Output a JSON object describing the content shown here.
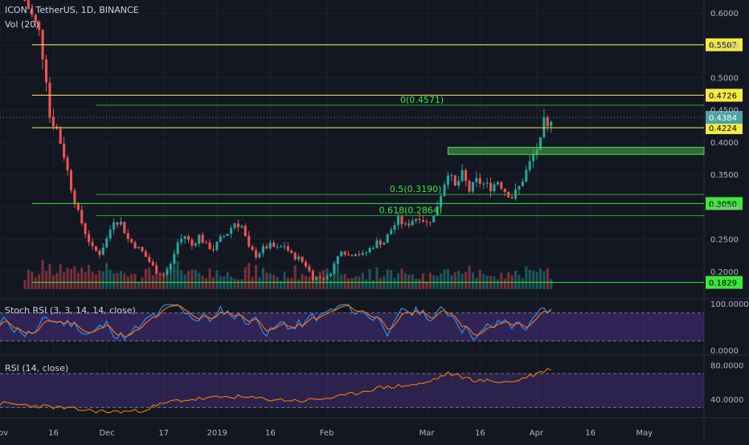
{
  "header": {
    "symbol": "ICON / TetherUS, 1D, BINANCE",
    "volume": "Vol (20)"
  },
  "chart_data": [
    {
      "type": "candlestick",
      "title": "ICON / TetherUS, 1D, BINANCE",
      "ylim": [
        0.16,
        0.62
      ],
      "y_ticks": [
        "0.6000",
        "0.5500",
        "0.5000",
        "0.4500",
        "0.4000",
        "0.3500",
        "0.3000",
        "0.2500",
        "0.2000"
      ],
      "x_ticks": [
        "Nov",
        "16",
        "Dec",
        "17",
        "2019",
        "16",
        "Feb",
        "Mar",
        "16",
        "Apr",
        "16",
        "May"
      ],
      "x_range": [
        "2018-11-01",
        "2019-05-18"
      ],
      "last_price": "0.4384",
      "horizontal_levels": [
        {
          "label": "0.5507",
          "value": 0.5507,
          "color": "#f5ea47"
        },
        {
          "label": "0.4726",
          "value": 0.4726,
          "color": "#f5ea47"
        },
        {
          "label": "0.4224",
          "value": 0.4224,
          "color": "#f5ea47"
        },
        {
          "label": "0.3050",
          "value": 0.305,
          "color": "#3ee63e"
        },
        {
          "label": "0.1829",
          "value": 0.1829,
          "color": "#3ee63e"
        }
      ],
      "fib_levels": [
        {
          "label": "0(0.4571)",
          "value": 0.4571
        },
        {
          "label": "0.5(0.3190)",
          "value": 0.319
        },
        {
          "label": "0.618(0.2864)",
          "value": 0.2864
        }
      ],
      "zone": {
        "from": 0.381,
        "to": 0.392
      },
      "colors": {
        "up": "#26a69a",
        "down": "#ef5350",
        "level_yellow": "#f5ea47",
        "level_green": "#3ee63e",
        "last_price": "#4aa3a3"
      },
      "close_path": [
        [
          "2018-11-08",
          0.62
        ],
        [
          "2018-11-12",
          0.57
        ],
        [
          "2018-11-14",
          0.5
        ],
        [
          "2018-11-15",
          0.44
        ],
        [
          "2018-11-17",
          0.42
        ],
        [
          "2018-11-19",
          0.38
        ],
        [
          "2018-11-21",
          0.33
        ],
        [
          "2018-11-23",
          0.29
        ],
        [
          "2018-11-25",
          0.26
        ],
        [
          "2018-11-27",
          0.235
        ],
        [
          "2018-11-29",
          0.228
        ],
        [
          "2018-12-01",
          0.25
        ],
        [
          "2018-12-03",
          0.28
        ],
        [
          "2018-12-05",
          0.275
        ],
        [
          "2018-12-07",
          0.25
        ],
        [
          "2018-12-09",
          0.24
        ],
        [
          "2018-12-11",
          0.23
        ],
        [
          "2018-12-13",
          0.215
        ],
        [
          "2018-12-15",
          0.2
        ],
        [
          "2018-12-17",
          0.195
        ],
        [
          "2018-12-19",
          0.21
        ],
        [
          "2018-12-21",
          0.245
        ],
        [
          "2018-12-23",
          0.255
        ],
        [
          "2018-12-25",
          0.24
        ],
        [
          "2018-12-27",
          0.255
        ],
        [
          "2018-12-29",
          0.24
        ],
        [
          "2018-12-31",
          0.235
        ],
        [
          "2019-01-02",
          0.25
        ],
        [
          "2019-01-04",
          0.26
        ],
        [
          "2019-01-06",
          0.275
        ],
        [
          "2019-01-08",
          0.27
        ],
        [
          "2019-01-10",
          0.235
        ],
        [
          "2019-01-12",
          0.225
        ],
        [
          "2019-01-14",
          0.235
        ],
        [
          "2019-01-16",
          0.24
        ],
        [
          "2019-01-18",
          0.235
        ],
        [
          "2019-01-20",
          0.24
        ],
        [
          "2019-01-22",
          0.225
        ],
        [
          "2019-01-24",
          0.22
        ],
        [
          "2019-01-26",
          0.21
        ],
        [
          "2019-01-28",
          0.19
        ],
        [
          "2019-01-30",
          0.19
        ],
        [
          "2019-02-01",
          0.19
        ],
        [
          "2019-02-03",
          0.21
        ],
        [
          "2019-02-05",
          0.235
        ],
        [
          "2019-02-07",
          0.225
        ],
        [
          "2019-02-09",
          0.23
        ],
        [
          "2019-02-11",
          0.225
        ],
        [
          "2019-02-13",
          0.235
        ],
        [
          "2019-02-15",
          0.245
        ],
        [
          "2019-02-17",
          0.245
        ],
        [
          "2019-02-19",
          0.265
        ],
        [
          "2019-02-21",
          0.28
        ],
        [
          "2019-02-23",
          0.27
        ],
        [
          "2019-02-25",
          0.28
        ],
        [
          "2019-02-27",
          0.285
        ],
        [
          "2019-03-01",
          0.275
        ],
        [
          "2019-03-03",
          0.285
        ],
        [
          "2019-03-05",
          0.32
        ],
        [
          "2019-03-07",
          0.355
        ],
        [
          "2019-03-09",
          0.33
        ],
        [
          "2019-03-11",
          0.35
        ],
        [
          "2019-03-13",
          0.325
        ],
        [
          "2019-03-15",
          0.34
        ],
        [
          "2019-03-17",
          0.335
        ],
        [
          "2019-03-19",
          0.33
        ],
        [
          "2019-03-21",
          0.34
        ],
        [
          "2019-03-23",
          0.325
        ],
        [
          "2019-03-25",
          0.315
        ],
        [
          "2019-03-27",
          0.33
        ],
        [
          "2019-03-29",
          0.355
        ],
        [
          "2019-03-31",
          0.38
        ],
        [
          "2019-04-02",
          0.4
        ],
        [
          "2019-04-03",
          0.43
        ],
        [
          "2019-04-04",
          0.42
        ],
        [
          "2019-04-05",
          0.4384
        ]
      ]
    },
    {
      "type": "line",
      "title": "Stoch RSI (3, 3, 14, 14, close)",
      "ylim": [
        0,
        100
      ],
      "y_ticks": [
        "100.0000",
        "0.0000"
      ],
      "bands": [
        80,
        20
      ]
    },
    {
      "type": "line",
      "title": "RSI (14, close)",
      "ylim": [
        20,
        90
      ],
      "y_ticks": [
        "80.0000",
        "40.0000"
      ],
      "bands": [
        70,
        30
      ],
      "values_path": [
        [
          "2018-11-01",
          35
        ],
        [
          "2018-11-15",
          31
        ],
        [
          "2018-11-22",
          28
        ],
        [
          "2018-12-01",
          25
        ],
        [
          "2018-12-10",
          26
        ],
        [
          "2018-12-20",
          38
        ],
        [
          "2019-01-05",
          43
        ],
        [
          "2019-01-15",
          40
        ],
        [
          "2019-01-25",
          38
        ],
        [
          "2019-02-05",
          43
        ],
        [
          "2019-02-15",
          53
        ],
        [
          "2019-02-28",
          58
        ],
        [
          "2019-03-07",
          70
        ],
        [
          "2019-03-15",
          62
        ],
        [
          "2019-03-25",
          60
        ],
        [
          "2019-04-05",
          76
        ]
      ]
    }
  ]
}
